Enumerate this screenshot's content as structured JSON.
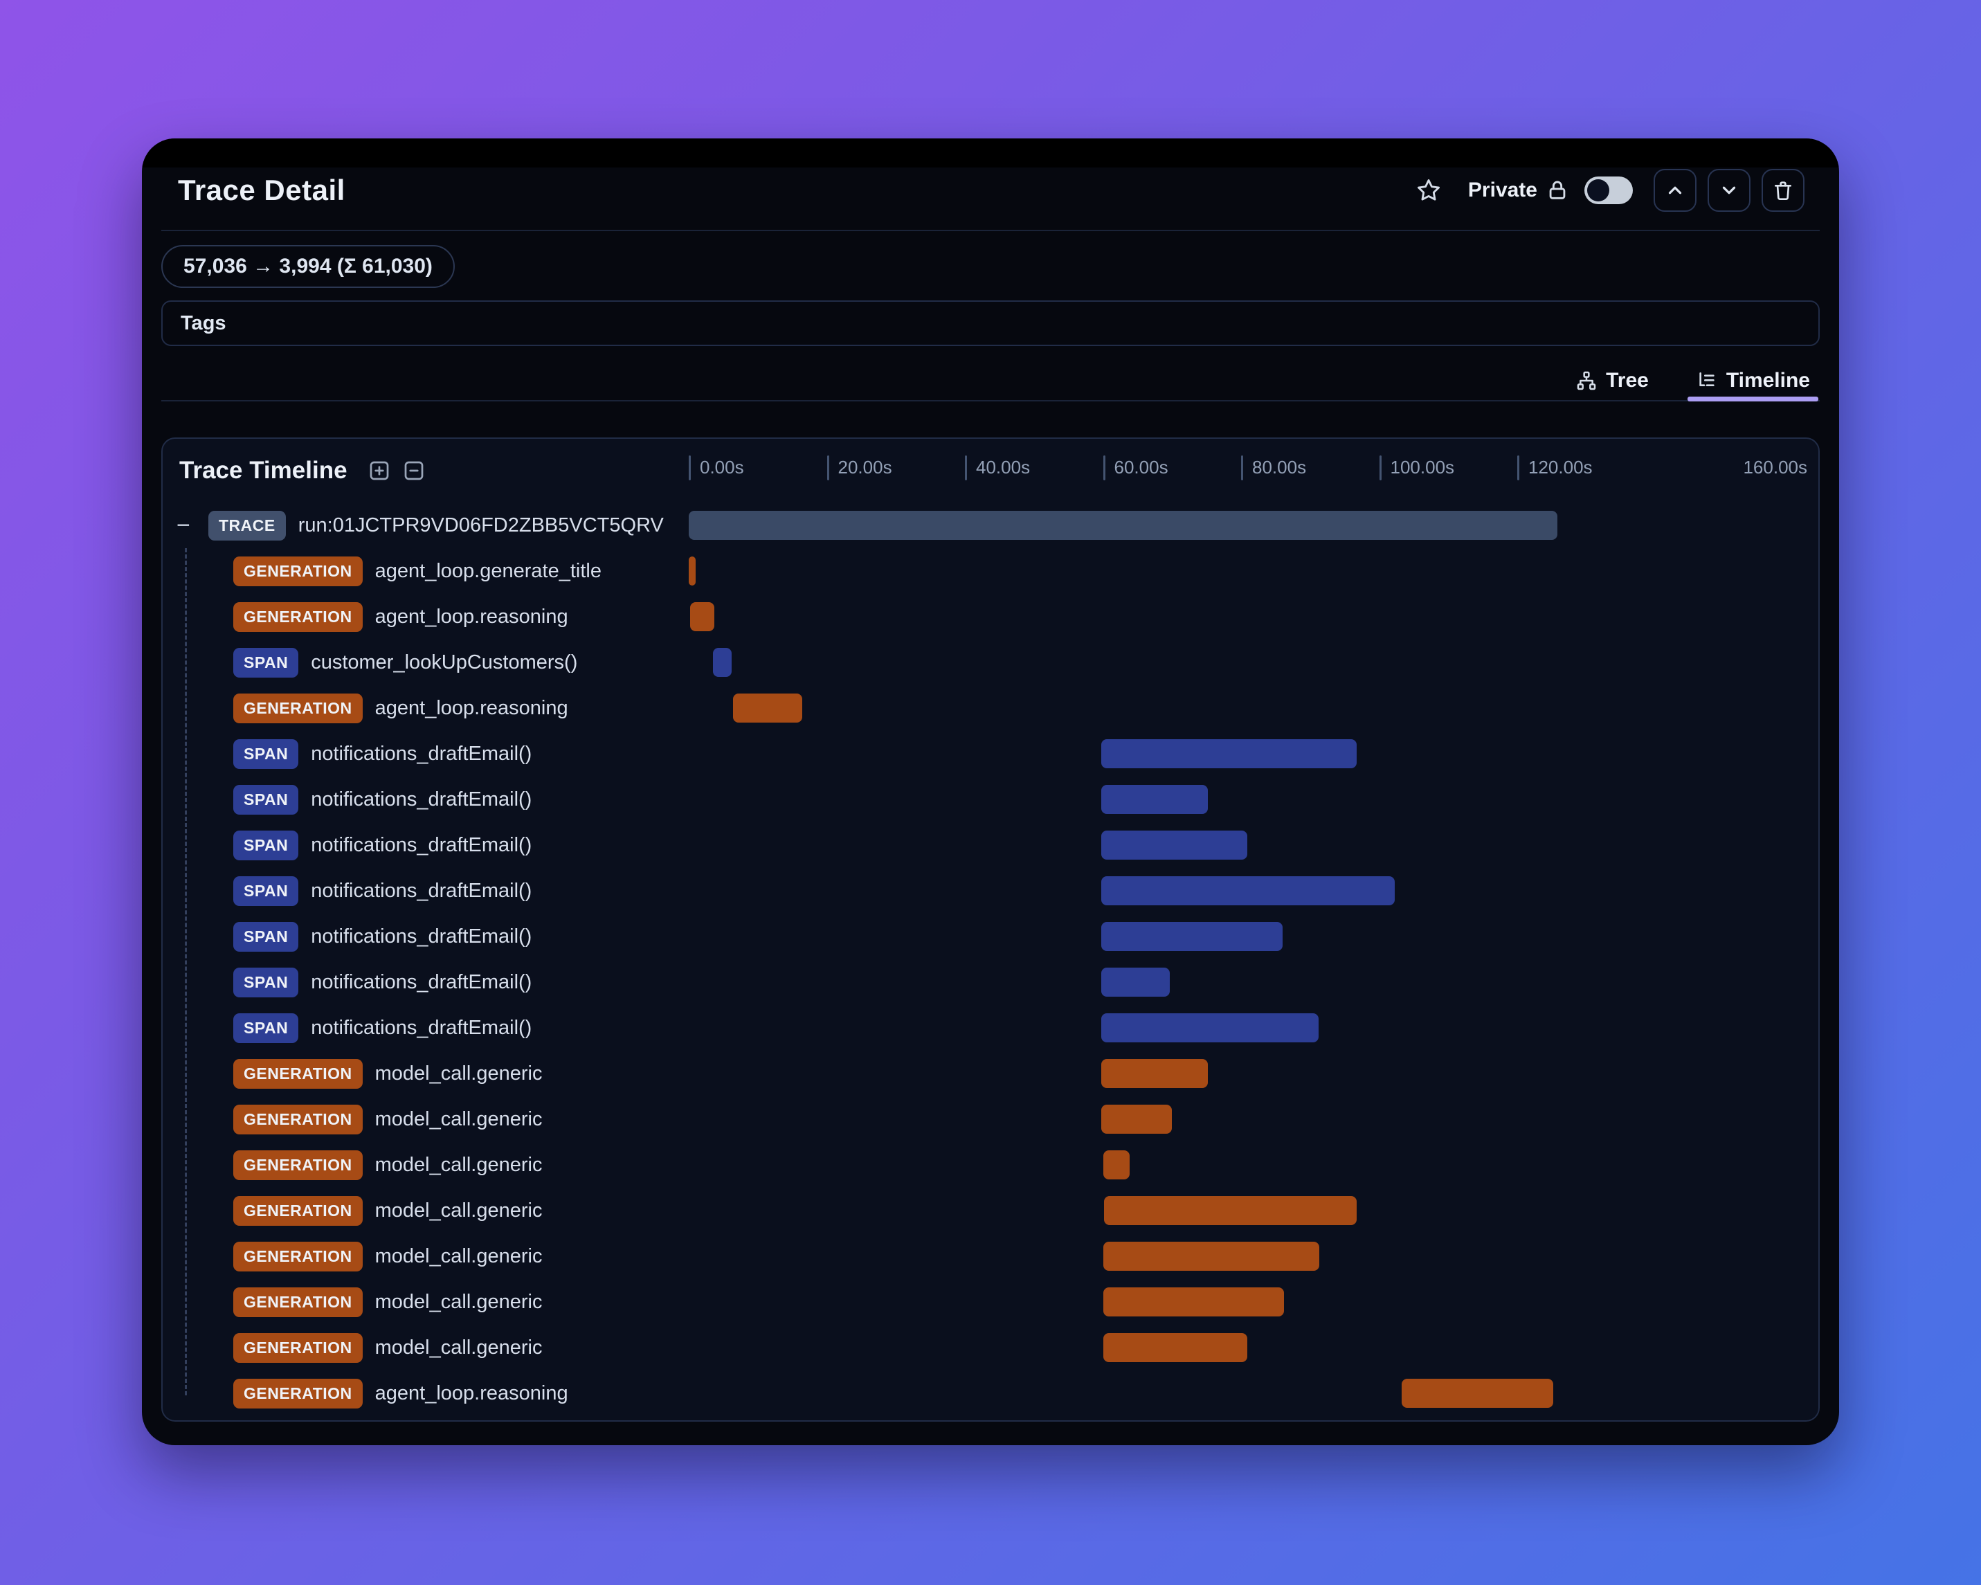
{
  "header": {
    "title": "Trace Detail",
    "privacy_label": "Private",
    "toggle_state": "off"
  },
  "token_badge": "57,036 → 3,994 (Σ 61,030)",
  "tags": {
    "label": "Tags"
  },
  "view_tabs": {
    "tree_label": "Tree",
    "timeline_label": "Timeline",
    "active": "Timeline"
  },
  "timeline": {
    "title": "Trace Timeline",
    "collapse_glyph": "−",
    "axis": {
      "ticks": [
        "0.00s",
        "20.00s",
        "40.00s",
        "60.00s",
        "80.00s",
        "100.00s",
        "120.00s"
      ],
      "end_label": "160.00s",
      "max_s": 160
    },
    "rows": [
      {
        "type": "TRACE",
        "label": "run:01JCTPR9VD06FD2ZBB5VCT5QRV",
        "start_s": 0,
        "end_s": 125.8,
        "root": true
      },
      {
        "type": "GENERATION",
        "label": "agent_loop.generate_title",
        "start_s": 0,
        "end_s": 1.0
      },
      {
        "type": "GENERATION",
        "label": "agent_loop.reasoning",
        "start_s": 0.2,
        "end_s": 3.7
      },
      {
        "type": "SPAN",
        "label": "customer_lookUpCustomers()",
        "start_s": 3.5,
        "end_s": 6.2
      },
      {
        "type": "GENERATION",
        "label": "agent_loop.reasoning",
        "start_s": 6.4,
        "end_s": 16.4
      },
      {
        "type": "SPAN",
        "label": "notifications_draftEmail()",
        "start_s": 59.7,
        "end_s": 96.7
      },
      {
        "type": "SPAN",
        "label": "notifications_draftEmail()",
        "start_s": 59.7,
        "end_s": 75.2
      },
      {
        "type": "SPAN",
        "label": "notifications_draftEmail()",
        "start_s": 59.7,
        "end_s": 80.9
      },
      {
        "type": "SPAN",
        "label": "notifications_draftEmail()",
        "start_s": 59.7,
        "end_s": 102.3
      },
      {
        "type": "SPAN",
        "label": "notifications_draftEmail()",
        "start_s": 59.7,
        "end_s": 86.0
      },
      {
        "type": "SPAN",
        "label": "notifications_draftEmail()",
        "start_s": 59.7,
        "end_s": 69.7
      },
      {
        "type": "SPAN",
        "label": "notifications_draftEmail()",
        "start_s": 59.7,
        "end_s": 91.2
      },
      {
        "type": "GENERATION",
        "label": "model_call.generic",
        "start_s": 59.7,
        "end_s": 75.2
      },
      {
        "type": "GENERATION",
        "label": "model_call.generic",
        "start_s": 59.7,
        "end_s": 70.0
      },
      {
        "type": "GENERATION",
        "label": "model_call.generic",
        "start_s": 60.1,
        "end_s": 63.9
      },
      {
        "type": "GENERATION",
        "label": "model_call.generic",
        "start_s": 60.2,
        "end_s": 96.7
      },
      {
        "type": "GENERATION",
        "label": "model_call.generic",
        "start_s": 60.1,
        "end_s": 91.3
      },
      {
        "type": "GENERATION",
        "label": "model_call.generic",
        "start_s": 60.1,
        "end_s": 86.2
      },
      {
        "type": "GENERATION",
        "label": "model_call.generic",
        "start_s": 60.1,
        "end_s": 80.9
      },
      {
        "type": "GENERATION",
        "label": "agent_loop.reasoning",
        "start_s": 103.3,
        "end_s": 125.2
      }
    ]
  },
  "colors": {
    "generation": "#a74b15",
    "span": "#2d3e95",
    "trace_badge": "#41506c",
    "trace_bar": "#3a4a66",
    "tab_underline": "#ab9df2"
  }
}
